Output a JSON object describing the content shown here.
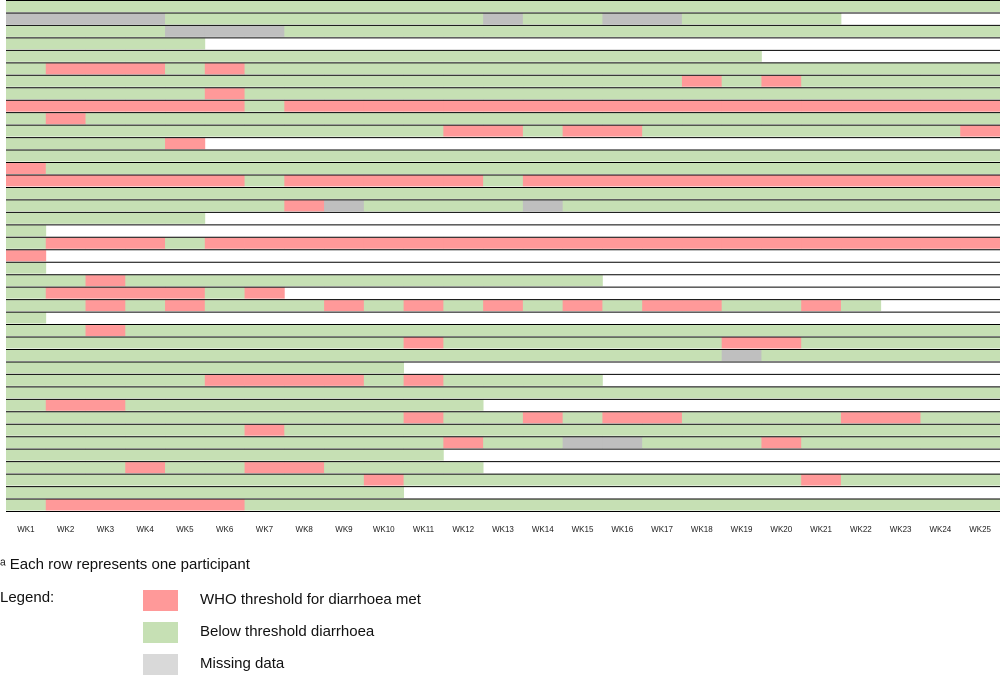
{
  "chart_data": {
    "type": "heatmap",
    "x_labels": [
      "WK1",
      "WK2",
      "WK3",
      "WK4",
      "WK5",
      "WK6",
      "WK7",
      "WK8",
      "WK9",
      "WK10",
      "WK11",
      "WK12",
      "WK13",
      "WK14",
      "WK15",
      "WK16",
      "WK17",
      "WK18",
      "WK19",
      "WK20",
      "WK21",
      "WK22",
      "WK23",
      "WK24",
      "WK25"
    ],
    "status_codes": {
      "G": "Below threshold diarrhoea",
      "R": "WHO threshold for diarrhoea met",
      "M": "Missing data",
      "N": "No observation"
    },
    "colors": {
      "G": "#c6e0b4",
      "R": "#ff9999",
      "M": "#bfbfbf",
      "N": "#ffffff"
    },
    "rows": [
      "GGGGGGGGGGGGGGGGGGGGGGGGG",
      "MMMMGGGGGGGGMGGMMGGGGNNNN",
      "GGGGMMMGGGGGGGGGGGGGGGGGG",
      "GGGGGNNNNNNNNNNNNNNNNNNNN",
      "GGGGGGGGGGGGGGGGGGGNNNNNN",
      "GRRRGRGGGGGGGGGGGGGGGGGGG",
      "GGGGGGGGGGGGGGGGGRGRGGGGG",
      "GGGGGRGGGGGGGGGGGGGGGGGGG",
      "RRRRRRGRRRRRRRRRRRRRRRRRR",
      "GRGGGGGGGGGGGGGGGGGGGGGGG",
      "GGGGGGGGGGGRRGRRGGGGGGGGR",
      "GGGGRNNNNNNNNNNNNNNNNNNNN",
      "GGGGGGGGGGGGGGGGGGGGGGGGG",
      "RGGGGGGGGGGGGGGGGGGGGGGGG",
      "RRRRRRGRRRRRGRRRRRRRRRRRR",
      "GGGGGGGGGGGGGGGGGGGGGGGGG",
      "GGGGGGGRMGGGGMGGGGGGGGGGG",
      "GGGGGNNNNNNNNNNNNNNNNNNNN",
      "GNNNNNNNNNNNNNNNNNNNNNNNN",
      "GRRRGRRRRRRRRRRRRRRRRRRRR",
      "RNNNNNNNNNNNNNNNNNNNNNNNN",
      "GNNNNNNNNNNNNNNNNNNNNNNNN",
      "GGRGGGGGGGGGGGGNNNNNNNNNN",
      "GRRRRGRNNNNNNNNNNNNNNNNNN",
      "GGRGRGGGRGRGRGRGRRGGRGNNN",
      "GNNNNNNNNNNNNNNNNNNNNNNNN",
      "GGRGGGGGGGGGGGGGGGGGGGGGG",
      "GGGGGGGGGGRGGGGGGGRRGGGGG",
      "GGGGGGGGGGGGGGGGGGMGGGGGG",
      "GGGGGGGGGGNNNNNNNNNNNNNNN",
      "GGGGGRRRRGRGGGGNNNNNNNNNN",
      "GGGGGGGGGGGGGGGGGGGGGGGGG",
      "GRRGGGGGGGGGNNNNNNNNNNNNN",
      "GGGGGGGGGGRGGRGRRGGGGRRGG",
      "GGGGGGRGGGGGGGGGGGGGGGGGG",
      "GGGGGGGGGGGRGGMMGGGRGGGGG",
      "GGGGGGGGGGGNNNNNNNNNNNNNN",
      "GGGRGGRRGGGGNNNNNNNNNNNNN",
      "GGGGGGGGGRGGGGGGGGGGRGGGG",
      "GGGGGGGGGGNNNNNNNNNNNNNNN",
      "GRRRRRGGGGGGGGGGGGGGGGGGG"
    ],
    "legend": [
      {
        "code": "R",
        "label": "WHO threshold for diarrhoea met"
      },
      {
        "code": "G",
        "label": "Below threshold diarrhoea"
      },
      {
        "code": "M",
        "label": "Missing data"
      }
    ]
  },
  "footnote": "ᵃ Each row represents one participant",
  "legend_title": "Legend:",
  "legend": {
    "item0": "WHO threshold for diarrhoea met",
    "item1": "Below threshold diarrhoea",
    "item2": "Missing data"
  }
}
